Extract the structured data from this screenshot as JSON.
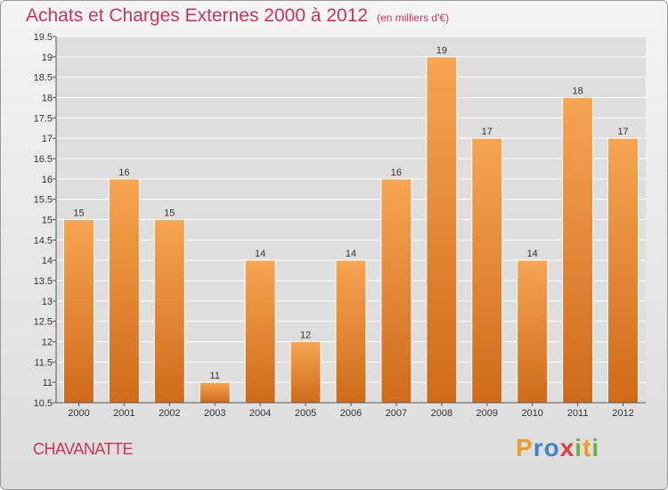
{
  "header": {
    "title": "Achats et Charges Externes 2000 à 2012",
    "unit": "(en milliers d'€)"
  },
  "footer": {
    "commune": "CHAVANATTE",
    "logo_letters": [
      "P",
      "r",
      "o",
      "x",
      "i",
      "t",
      "i"
    ],
    "logo_colors": [
      "#f29a24",
      "#3a86c8",
      "#3a86c8",
      "#e23b3b",
      "#6db33f",
      "#f29a24",
      "#6db33f"
    ]
  },
  "chart_data": {
    "type": "bar",
    "categories": [
      "2000",
      "2001",
      "2002",
      "2003",
      "2004",
      "2005",
      "2006",
      "2007",
      "2008",
      "2009",
      "2010",
      "2011",
      "2012"
    ],
    "values": [
      15,
      16,
      15,
      11,
      14,
      12,
      14,
      16,
      19,
      17,
      14,
      18,
      17
    ],
    "ylim": [
      10.5,
      19.5
    ],
    "yticks": [
      10.5,
      11,
      11.5,
      12,
      12.5,
      13,
      13.5,
      14,
      14.5,
      15,
      15.5,
      16,
      16.5,
      17,
      17.5,
      18,
      18.5,
      19,
      19.5
    ],
    "ytick_labels": [
      "10.5",
      "11",
      "11.5",
      "12",
      "12.5",
      "13",
      "13.5",
      "14",
      "14.5",
      "15",
      "15.5",
      "16",
      "16.5",
      "17",
      "17.5",
      "18",
      "18.5",
      "19",
      "19.5"
    ],
    "grid": true,
    "bar_color_top": "#f6a552",
    "bar_color_bottom": "#cf6a1a"
  }
}
